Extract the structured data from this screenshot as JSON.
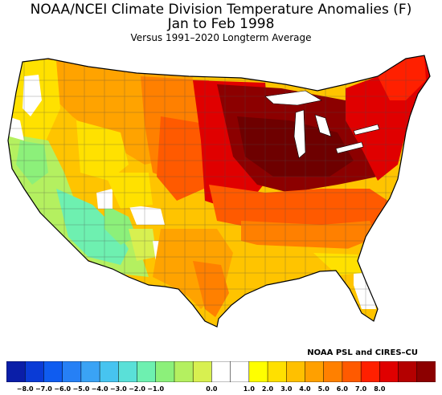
{
  "title": "NOAA/NCEI Climate Division Temperature Anomalies (F)",
  "period": "Jan to Feb 1998",
  "subtitle": "Versus 1991–2020 Longterm Average",
  "credit": "NOAA PSL and CIRES–CU",
  "legend": {
    "colors": [
      "#0a1ea8",
      "#0a3bd6",
      "#0f5cf0",
      "#2680f5",
      "#3aa3f5",
      "#47c4f0",
      "#5ae0d8",
      "#6ef0b0",
      "#8cf07a",
      "#b4f060",
      "#d8f050",
      "#ffffff",
      "#ffffff",
      "#ffff00",
      "#ffe000",
      "#ffc000",
      "#ffa000",
      "#ff8000",
      "#ff5a00",
      "#ff2000",
      "#e00000",
      "#b40000",
      "#8c0000"
    ],
    "ticks": [
      "−8.0",
      "−7.0",
      "−6.0",
      "−5.0",
      "−4.0",
      "−3.0",
      "−2.0",
      "−1.0",
      "0.0",
      "1.0",
      "2.0",
      "3.0",
      "4.0",
      "5.0",
      "6.0",
      "7.0",
      "8.0"
    ]
  }
}
